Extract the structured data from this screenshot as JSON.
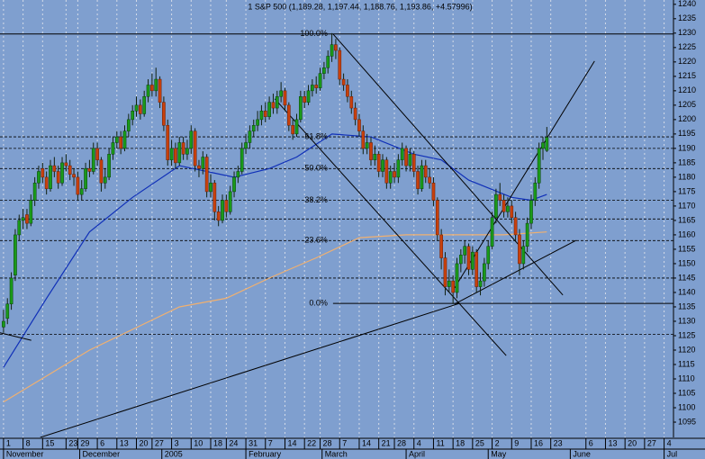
{
  "chart_data": {
    "type": "candlestick",
    "title": "1 S&P 500 (1,189.28, 1,197.44, 1,188.76, 1,193.86, +4.57996)",
    "background": "#7f9fcf",
    "up_color": "#1a9a1a",
    "down_color": "#c8400c",
    "grid": true,
    "xlim": [
      -0.9,
      171.4
    ],
    "ylim": [
      1089.7,
      1241.5
    ],
    "yticks": [
      1095,
      1100,
      1105,
      1110,
      1115,
      1120,
      1125,
      1130,
      1135,
      1140,
      1145,
      1150,
      1155,
      1160,
      1165,
      1170,
      1175,
      1180,
      1185,
      1190,
      1195,
      1200,
      1205,
      1210,
      1215,
      1220,
      1225,
      1230,
      1235,
      1240
    ],
    "xticks": [
      {
        "value": 0,
        "label": "1"
      },
      {
        "value": 5,
        "label": "8"
      },
      {
        "value": 10,
        "label": "15"
      },
      {
        "value": 16,
        "label": "23"
      },
      {
        "value": 19,
        "label": "29"
      },
      {
        "value": 24,
        "label": "6"
      },
      {
        "value": 29,
        "label": "13"
      },
      {
        "value": 34,
        "label": "20"
      },
      {
        "value": 38,
        "label": "27"
      },
      {
        "value": 43,
        "label": "3"
      },
      {
        "value": 48,
        "label": "10"
      },
      {
        "value": 53,
        "label": "18"
      },
      {
        "value": 57,
        "label": "24"
      },
      {
        "value": 62,
        "label": "31"
      },
      {
        "value": 67,
        "label": "7"
      },
      {
        "value": 72,
        "label": "14"
      },
      {
        "value": 77,
        "label": "22"
      },
      {
        "value": 81,
        "label": "28"
      },
      {
        "value": 86,
        "label": "7"
      },
      {
        "value": 91,
        "label": "14"
      },
      {
        "value": 96,
        "label": "21"
      },
      {
        "value": 100,
        "label": "28"
      },
      {
        "value": 105,
        "label": "4"
      },
      {
        "value": 110,
        "label": "11"
      },
      {
        "value": 115,
        "label": "18"
      },
      {
        "value": 120,
        "label": "25"
      },
      {
        "value": 125,
        "label": "2"
      },
      {
        "value": 130,
        "label": "9"
      },
      {
        "value": 135,
        "label": "16"
      },
      {
        "value": 140,
        "label": "23"
      },
      {
        "value": 149,
        "label": "6"
      },
      {
        "value": 154,
        "label": "13"
      },
      {
        "value": 159,
        "label": "20"
      },
      {
        "value": 164,
        "label": "27"
      },
      {
        "value": 169,
        "label": "4"
      }
    ],
    "month_labels": [
      {
        "value": 0,
        "label": "November"
      },
      {
        "value": 19.5,
        "label": "December"
      },
      {
        "value": 40.5,
        "label": "2005"
      },
      {
        "value": 62,
        "label": "February"
      },
      {
        "value": 81.5,
        "label": "March"
      },
      {
        "value": 103,
        "label": "April"
      },
      {
        "value": 124,
        "label": "May"
      },
      {
        "value": 145,
        "label": "June"
      },
      {
        "value": 169,
        "label": "Jul"
      }
    ],
    "open": [
      1128,
      1131,
      1136,
      1146,
      1160,
      1165,
      1167,
      1164,
      1172,
      1178,
      1183,
      1180,
      1176,
      1184,
      1182,
      1178,
      1185,
      1184,
      1181,
      1180,
      1174,
      1176,
      1183,
      1182,
      1190,
      1186,
      1178,
      1180,
      1188,
      1192,
      1194,
      1190,
      1196,
      1200,
      1203,
      1205,
      1202,
      1208,
      1212,
      1210,
      1214,
      1206,
      1198,
      1186,
      1190,
      1185,
      1192,
      1188,
      1190,
      1196,
      1184,
      1183,
      1187,
      1175,
      1178,
      1168,
      1165,
      1172,
      1168,
      1175,
      1180,
      1182,
      1190,
      1192,
      1196,
      1198,
      1200,
      1203,
      1201,
      1206,
      1204,
      1208,
      1210,
      1205,
      1198,
      1195,
      1200,
      1208,
      1206,
      1210,
      1212,
      1211,
      1216,
      1218,
      1222,
      1226,
      1224,
      1214,
      1212,
      1208,
      1204,
      1200,
      1196,
      1190,
      1192,
      1186,
      1188,
      1182,
      1186,
      1178,
      1182,
      1180,
      1186,
      1190,
      1184,
      1188,
      1182,
      1176,
      1184,
      1180,
      1178,
      1172,
      1160,
      1152,
      1142,
      1144,
      1140,
      1150,
      1153,
      1156,
      1148,
      1154,
      1142,
      1144,
      1150,
      1156,
      1166,
      1174,
      1172,
      1168,
      1170,
      1166,
      1160,
      1150,
      1156,
      1164,
      1172,
      1178,
      1190,
      1189.28
    ],
    "high": [
      1134,
      1138,
      1147,
      1162,
      1167,
      1169,
      1169,
      1174,
      1180,
      1184,
      1185,
      1182,
      1186,
      1187,
      1184,
      1187,
      1188,
      1186,
      1183,
      1182,
      1179,
      1185,
      1186,
      1192,
      1192,
      1187,
      1183,
      1190,
      1194,
      1196,
      1196,
      1198,
      1202,
      1205,
      1208,
      1207,
      1210,
      1214,
      1216,
      1218,
      1215,
      1208,
      1200,
      1193,
      1192,
      1194,
      1194,
      1193,
      1198,
      1197,
      1186,
      1189,
      1188,
      1181,
      1179,
      1170,
      1174,
      1174,
      1177,
      1182,
      1184,
      1192,
      1195,
      1198,
      1200,
      1203,
      1205,
      1206,
      1208,
      1209,
      1210,
      1213,
      1211,
      1206,
      1200,
      1202,
      1210,
      1210,
      1212,
      1214,
      1215,
      1218,
      1220,
      1224,
      1230,
      1228,
      1225,
      1216,
      1214,
      1210,
      1206,
      1202,
      1198,
      1195,
      1194,
      1191,
      1189,
      1188,
      1187,
      1184,
      1185,
      1188,
      1192,
      1191,
      1190,
      1189,
      1184,
      1186,
      1186,
      1183,
      1180,
      1173,
      1162,
      1154,
      1148,
      1146,
      1152,
      1155,
      1158,
      1157,
      1156,
      1155,
      1147,
      1152,
      1158,
      1168,
      1176,
      1178,
      1174,
      1173,
      1172,
      1168,
      1162,
      1158,
      1166,
      1174,
      1180,
      1192,
      1194,
      1197.44
    ],
    "low": [
      1126,
      1129,
      1134,
      1144,
      1158,
      1162,
      1162,
      1163,
      1170,
      1176,
      1178,
      1174,
      1175,
      1180,
      1176,
      1177,
      1182,
      1179,
      1177,
      1172,
      1172,
      1175,
      1180,
      1181,
      1184,
      1175,
      1176,
      1179,
      1186,
      1190,
      1188,
      1189,
      1194,
      1198,
      1201,
      1200,
      1201,
      1206,
      1208,
      1208,
      1204,
      1196,
      1184,
      1184,
      1183,
      1184,
      1186,
      1186,
      1188,
      1182,
      1180,
      1181,
      1173,
      1173,
      1165,
      1163,
      1164,
      1166,
      1167,
      1173,
      1178,
      1181,
      1188,
      1190,
      1194,
      1196,
      1198,
      1199,
      1200,
      1202,
      1202,
      1206,
      1203,
      1196,
      1193,
      1194,
      1199,
      1204,
      1205,
      1208,
      1209,
      1210,
      1214,
      1216,
      1220,
      1221,
      1212,
      1210,
      1206,
      1202,
      1198,
      1194,
      1188,
      1188,
      1184,
      1184,
      1180,
      1180,
      1176,
      1176,
      1178,
      1178,
      1184,
      1182,
      1182,
      1180,
      1174,
      1175,
      1178,
      1176,
      1170,
      1158,
      1148,
      1139,
      1140,
      1136,
      1138,
      1147,
      1150,
      1146,
      1146,
      1140,
      1139,
      1142,
      1148,
      1155,
      1164,
      1170,
      1166,
      1166,
      1164,
      1158,
      1146,
      1148,
      1154,
      1162,
      1170,
      1176,
      1186,
      1188.76
    ],
    "close": [
      1130,
      1136,
      1145,
      1160,
      1165,
      1166,
      1164,
      1172,
      1178,
      1182,
      1180,
      1176,
      1184,
      1182,
      1178,
      1185,
      1184,
      1181,
      1180,
      1174,
      1176,
      1183,
      1182,
      1190,
      1186,
      1178,
      1180,
      1188,
      1192,
      1194,
      1190,
      1196,
      1200,
      1203,
      1205,
      1202,
      1208,
      1212,
      1210,
      1214,
      1206,
      1198,
      1186,
      1190,
      1185,
      1192,
      1188,
      1190,
      1196,
      1184,
      1183,
      1187,
      1175,
      1178,
      1168,
      1165,
      1172,
      1168,
      1175,
      1180,
      1182,
      1190,
      1192,
      1196,
      1198,
      1200,
      1203,
      1201,
      1206,
      1204,
      1208,
      1210,
      1205,
      1198,
      1195,
      1200,
      1208,
      1206,
      1210,
      1212,
      1211,
      1216,
      1218,
      1222,
      1226,
      1224,
      1214,
      1212,
      1208,
      1204,
      1200,
      1196,
      1190,
      1192,
      1186,
      1188,
      1182,
      1186,
      1178,
      1182,
      1180,
      1186,
      1190,
      1184,
      1188,
      1182,
      1176,
      1184,
      1180,
      1178,
      1172,
      1160,
      1152,
      1142,
      1144,
      1140,
      1150,
      1153,
      1156,
      1148,
      1154,
      1142,
      1144,
      1150,
      1156,
      1166,
      1174,
      1172,
      1168,
      1170,
      1166,
      1160,
      1150,
      1156,
      1164,
      1172,
      1178,
      1190,
      1192,
      1193.86
    ],
    "moving_averages": [
      {
        "color": "#1030b8",
        "x": [
          0,
          11,
          22,
          33,
          45,
          52,
          59,
          68,
          75,
          84,
          94,
          105,
          112,
          119,
          130,
          135,
          139
        ],
        "values": [
          1114,
          1138,
          1161,
          1173,
          1184,
          1182,
          1180,
          1183,
          1187,
          1195,
          1194,
          1188,
          1186,
          1179,
          1173,
          1172,
          1174
        ]
      },
      {
        "color": "#f0b070",
        "x": [
          0,
          22,
          45,
          57,
          68,
          80,
          91,
          103,
          114,
          128,
          139
        ],
        "values": [
          1102,
          1120,
          1135,
          1138,
          1145,
          1152,
          1159,
          1160,
          1160,
          1160,
          1161
        ]
      }
    ],
    "fib_levels": [
      {
        "label": "100.0%",
        "value": 1229.7
      },
      {
        "label": "61.8%",
        "value": 1194
      },
      {
        "label": "50.0%",
        "value": 1183
      },
      {
        "label": "38.2%",
        "value": 1172
      },
      {
        "label": "23.6%",
        "value": 1158
      },
      {
        "label": "0.0%",
        "value": 1136.2
      }
    ],
    "support_levels": [
      1190,
      1165.5,
      1145,
      1125.5
    ],
    "trend_lines": [
      {
        "x": [
          84.3,
          143.1
        ],
        "values": [
          1229.7,
          1139.1
        ]
      },
      {
        "x": [
          69.4,
          128.6
        ],
        "values": [
          1207.2,
          1118.1
        ]
      },
      {
        "x": [
          115.4,
          151.2
        ],
        "values": [
          1141.6,
          1220.3
        ]
      },
      {
        "x": [
          9.4,
          116.6
        ],
        "values": [
          1089.7,
          1136.2
        ]
      },
      {
        "x": [
          115.4,
          146.5
        ],
        "values": [
          1136,
          1158.1
        ]
      },
      {
        "x": [
          -0.9,
          7.1
        ],
        "values": [
          1126,
          1123.4
        ]
      }
    ]
  }
}
